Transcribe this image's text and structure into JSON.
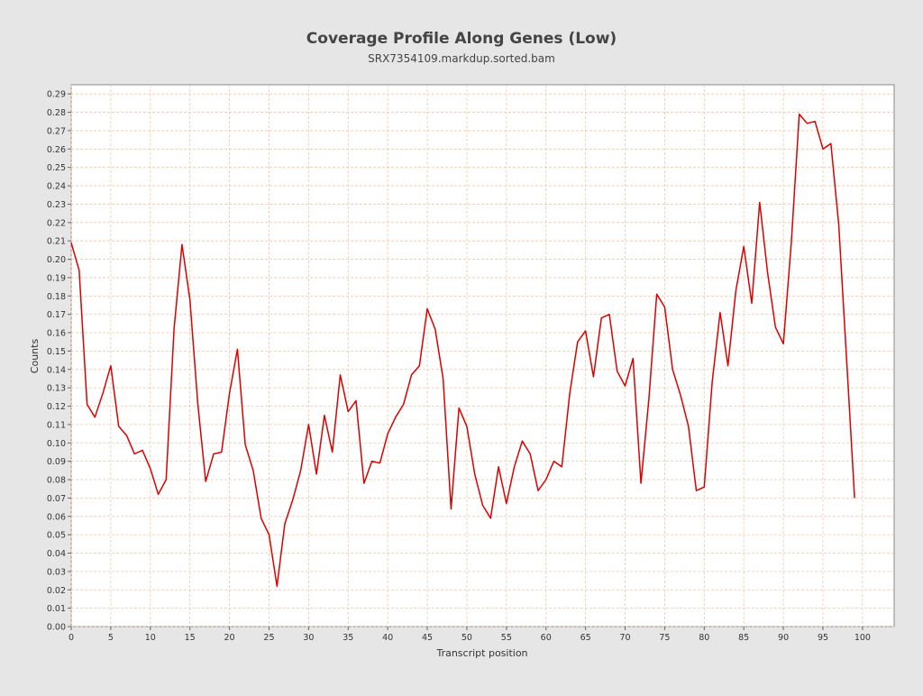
{
  "chart_data": {
    "type": "line",
    "title": "Coverage Profile Along Genes (Low)",
    "subtitle": "SRX7354109.markdup.sorted.bam",
    "xlabel": "Transcript position",
    "ylabel": "Counts",
    "xlim": [
      0,
      104
    ],
    "ylim": [
      0,
      0.295
    ],
    "grid": true,
    "x_ticks": [
      0,
      5,
      10,
      15,
      20,
      25,
      30,
      35,
      40,
      45,
      50,
      55,
      60,
      65,
      70,
      75,
      80,
      85,
      90,
      95,
      100
    ],
    "y_ticks": [
      0,
      0.01,
      0.02,
      0.03,
      0.04,
      0.05,
      0.06,
      0.07,
      0.08,
      0.09,
      0.1,
      0.11,
      0.12,
      0.13,
      0.14,
      0.15,
      0.16,
      0.17,
      0.18,
      0.19,
      0.2,
      0.21,
      0.22,
      0.23,
      0.24,
      0.25,
      0.26,
      0.27,
      0.28,
      0.29
    ],
    "series": [
      {
        "color": "#dd0000",
        "x": [
          0,
          1,
          2,
          3,
          4,
          5,
          6,
          7,
          8,
          9,
          10,
          11,
          12,
          13,
          14,
          15,
          16,
          17,
          18,
          19,
          20,
          21,
          22,
          23,
          24,
          25,
          26,
          27,
          28,
          29,
          30,
          31,
          32,
          33,
          34,
          35,
          36,
          37,
          38,
          39,
          40,
          41,
          42,
          43,
          44,
          45,
          46,
          47,
          48,
          49,
          50,
          51,
          52,
          53,
          54,
          55,
          56,
          57,
          58,
          59,
          60,
          61,
          62,
          63,
          64,
          65,
          66,
          67,
          68,
          69,
          70,
          71,
          72,
          73,
          74,
          75,
          76,
          77,
          78,
          79,
          80,
          81,
          82,
          83,
          84,
          85,
          86,
          87,
          88,
          89,
          90,
          91,
          92,
          93,
          94,
          95,
          96,
          97,
          98,
          99
        ],
        "y": [
          0.209,
          0.194,
          0.121,
          0.114,
          0.127,
          0.142,
          0.109,
          0.104,
          0.094,
          0.096,
          0.086,
          0.072,
          0.08,
          0.162,
          0.208,
          0.178,
          0.121,
          0.079,
          0.094,
          0.095,
          0.127,
          0.151,
          0.099,
          0.085,
          0.059,
          0.05,
          0.022,
          0.056,
          0.069,
          0.085,
          0.11,
          0.083,
          0.115,
          0.095,
          0.137,
          0.117,
          0.123,
          0.078,
          0.09,
          0.089,
          0.105,
          0.114,
          0.121,
          0.137,
          0.142,
          0.173,
          0.162,
          0.135,
          0.064,
          0.119,
          0.109,
          0.083,
          0.066,
          0.059,
          0.087,
          0.067,
          0.087,
          0.101,
          0.094,
          0.074,
          0.08,
          0.09,
          0.087,
          0.127,
          0.155,
          0.161,
          0.136,
          0.168,
          0.17,
          0.139,
          0.131,
          0.146,
          0.078,
          0.124,
          0.181,
          0.174,
          0.14,
          0.126,
          0.109,
          0.074,
          0.076,
          0.133,
          0.171,
          0.142,
          0.183,
          0.207,
          0.176,
          0.231,
          0.193,
          0.163,
          0.154,
          0.209,
          0.279,
          0.274,
          0.275,
          0.26,
          0.263,
          0.219,
          0.145,
          0.07
        ]
      }
    ]
  }
}
